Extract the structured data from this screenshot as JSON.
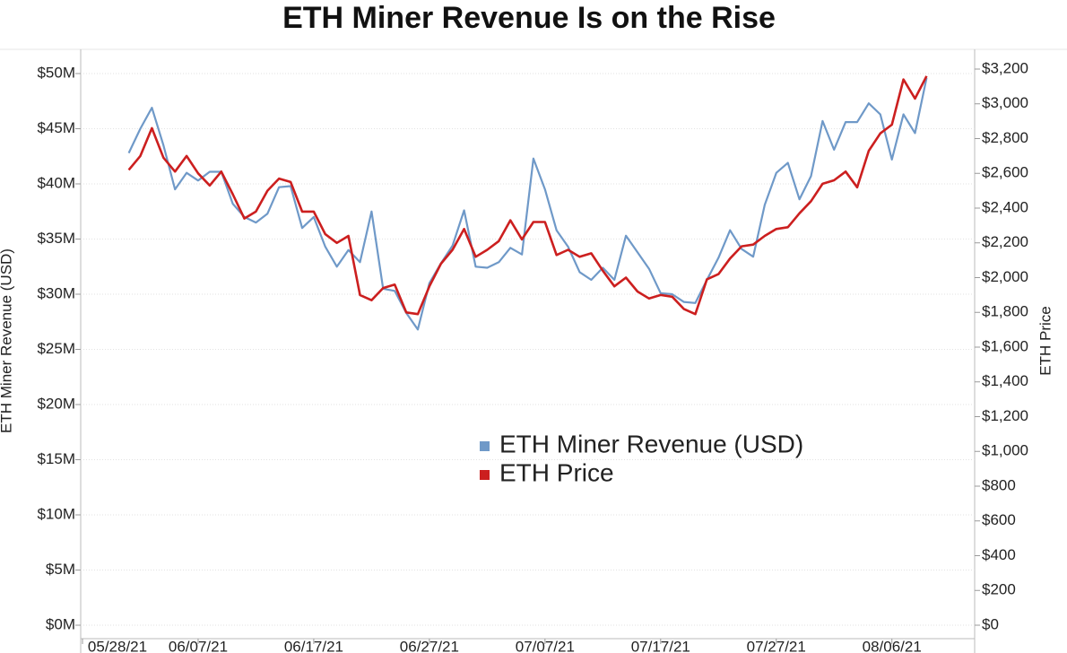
{
  "chart_data": {
    "type": "line",
    "title": "ETH Miner Revenue Is on the Rise",
    "y_label": "ETH Miner Revenue (USD)",
    "y2_label": "ETH Price",
    "legend": "center",
    "grid": true,
    "x": [
      "06/01/21",
      "06/02/21",
      "06/03/21",
      "06/04/21",
      "06/05/21",
      "06/06/21",
      "06/07/21",
      "06/08/21",
      "06/09/21",
      "06/10/21",
      "06/11/21",
      "06/12/21",
      "06/13/21",
      "06/14/21",
      "06/15/21",
      "06/16/21",
      "06/17/21",
      "06/18/21",
      "06/19/21",
      "06/20/21",
      "06/21/21",
      "06/22/21",
      "06/23/21",
      "06/24/21",
      "06/25/21",
      "06/26/21",
      "06/27/21",
      "06/28/21",
      "06/29/21",
      "06/30/21",
      "07/01/21",
      "07/02/21",
      "07/03/21",
      "07/04/21",
      "07/05/21",
      "07/06/21",
      "07/07/21",
      "07/08/21",
      "07/09/21",
      "07/10/21",
      "07/11/21",
      "07/12/21",
      "07/13/21",
      "07/14/21",
      "07/15/21",
      "07/16/21",
      "07/17/21",
      "07/18/21",
      "07/19/21",
      "07/20/21",
      "07/21/21",
      "07/22/21",
      "07/23/21",
      "07/24/21",
      "07/25/21",
      "07/26/21",
      "07/27/21",
      "07/28/21",
      "07/29/21",
      "07/30/21",
      "07/31/21",
      "08/01/21",
      "08/02/21",
      "08/03/21",
      "08/04/21",
      "08/05/21",
      "08/06/21",
      "08/07/21",
      "08/08/21",
      "08/09/21"
    ],
    "xlim": [
      "05/28/21",
      "08/13/21"
    ],
    "xticks": [
      "05/28/21",
      "06/07/21",
      "06/17/21",
      "06/27/21",
      "07/07/21",
      "07/17/21",
      "07/27/21",
      "08/06/21"
    ],
    "ylim": [
      0,
      50
    ],
    "yticks": [
      {
        "value": 0,
        "label": "$0M"
      },
      {
        "value": 5,
        "label": "$5M"
      },
      {
        "value": 10,
        "label": "$10M"
      },
      {
        "value": 15,
        "label": "$15M"
      },
      {
        "value": 20,
        "label": "$20M"
      },
      {
        "value": 25,
        "label": "$25M"
      },
      {
        "value": 30,
        "label": "$30M"
      },
      {
        "value": 35,
        "label": "$35M"
      },
      {
        "value": 40,
        "label": "$40M"
      },
      {
        "value": 45,
        "label": "$45M"
      },
      {
        "value": 50,
        "label": "$50M"
      }
    ],
    "y2lim": [
      0,
      3200
    ],
    "y2ticks": [
      {
        "value": 0,
        "label": "$0"
      },
      {
        "value": 200,
        "label": "$200"
      },
      {
        "value": 400,
        "label": "$400"
      },
      {
        "value": 600,
        "label": "$600"
      },
      {
        "value": 800,
        "label": "$800"
      },
      {
        "value": 1000,
        "label": "$1,000"
      },
      {
        "value": 1200,
        "label": "$1,200"
      },
      {
        "value": 1400,
        "label": "$1,400"
      },
      {
        "value": 1600,
        "label": "$1,600"
      },
      {
        "value": 1800,
        "label": "$1,800"
      },
      {
        "value": 2000,
        "label": "$2,000"
      },
      {
        "value": 2200,
        "label": "$2,200"
      },
      {
        "value": 2400,
        "label": "$2,400"
      },
      {
        "value": 2600,
        "label": "$2,600"
      },
      {
        "value": 2800,
        "label": "$2,800"
      },
      {
        "value": 3000,
        "label": "$3,000"
      },
      {
        "value": 3200,
        "label": "$3,200"
      }
    ],
    "series": [
      {
        "name": "ETH Miner Revenue (USD)",
        "color": "#6f99c8",
        "values": [
          42.8,
          45,
          46.9,
          43.5,
          39.5,
          41,
          40.3,
          41.1,
          41.1,
          38.2,
          37,
          36.5,
          37.3,
          39.7,
          39.8,
          36,
          37,
          34.3,
          32.5,
          34,
          32.9,
          37.5,
          30.5,
          30.3,
          28.3,
          26.8,
          31,
          32.8,
          34.4,
          37.6,
          32.5,
          32.4,
          32.9,
          34.2,
          33.6,
          42.3,
          39.5,
          35.8,
          34.3,
          32,
          31.3,
          32.4,
          31.3,
          35.3,
          33.8,
          32.3,
          30.1,
          30,
          29.3,
          29.2,
          31.3,
          33.3,
          35.8,
          34.1,
          33.4,
          38.1,
          41,
          41.9,
          38.6,
          40.7,
          45.7,
          43.1,
          45.6,
          45.6,
          47.3,
          46.3,
          42.2,
          46.3,
          44.6,
          49.6
        ]
      },
      {
        "name": "ETH Price",
        "color": "#cc1f1f",
        "axis": "y2",
        "values": [
          2620,
          2700,
          2860,
          2690,
          2610,
          2700,
          2600,
          2530,
          2610,
          2480,
          2340,
          2380,
          2500,
          2570,
          2550,
          2380,
          2380,
          2250,
          2200,
          2240,
          1900,
          1870,
          1940,
          1960,
          1800,
          1790,
          1950,
          2080,
          2160,
          2280,
          2120,
          2160,
          2210,
          2330,
          2220,
          2320,
          2320,
          2130,
          2160,
          2120,
          2140,
          2040,
          1950,
          2000,
          1920,
          1880,
          1900,
          1890,
          1820,
          1790,
          1990,
          2020,
          2110,
          2180,
          2190,
          2240,
          2280,
          2290,
          2370,
          2440,
          2540,
          2560,
          2610,
          2520,
          2730,
          2830,
          2880,
          3140,
          3030,
          3160
        ]
      }
    ]
  }
}
